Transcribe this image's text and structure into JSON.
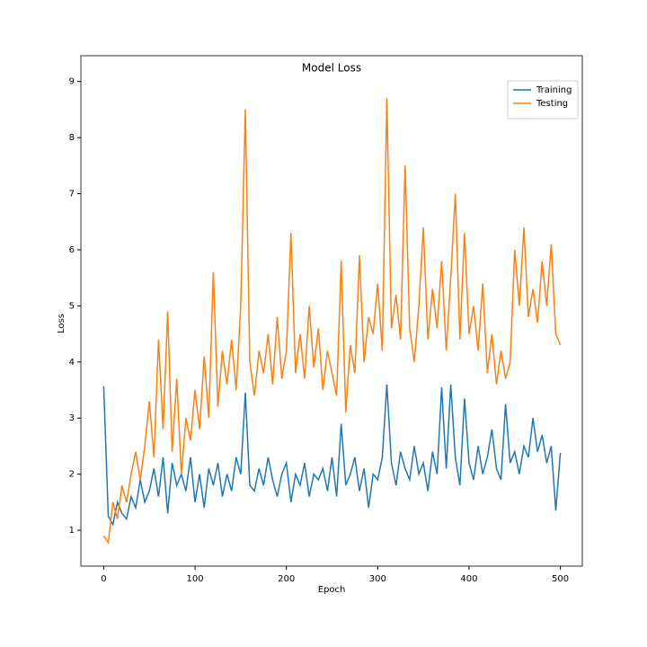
{
  "chart_data": {
    "type": "line",
    "title": "Model Loss",
    "x_label": "Epoch",
    "y_label": "Loss",
    "x": [
      0,
      5,
      10,
      15,
      20,
      25,
      30,
      35,
      40,
      45,
      50,
      55,
      60,
      65,
      70,
      75,
      80,
      85,
      90,
      95,
      100,
      105,
      110,
      115,
      120,
      125,
      130,
      135,
      140,
      145,
      150,
      155,
      160,
      165,
      170,
      175,
      180,
      185,
      190,
      195,
      200,
      205,
      210,
      215,
      220,
      225,
      230,
      235,
      240,
      245,
      250,
      255,
      260,
      265,
      270,
      275,
      280,
      285,
      290,
      295,
      300,
      305,
      310,
      315,
      320,
      325,
      330,
      335,
      340,
      345,
      350,
      355,
      360,
      365,
      370,
      375,
      380,
      385,
      390,
      395,
      400,
      405,
      410,
      415,
      420,
      425,
      430,
      435,
      440,
      445,
      450,
      455,
      460,
      465,
      470,
      475,
      480,
      485,
      490,
      495,
      500
    ],
    "series": [
      {
        "name": "Training",
        "color": "#1f77b4",
        "values": [
          3.57,
          1.25,
          1.1,
          1.5,
          1.3,
          1.2,
          1.6,
          1.4,
          1.9,
          1.5,
          1.7,
          2.1,
          1.6,
          2.3,
          1.3,
          2.2,
          1.8,
          2.0,
          1.7,
          2.3,
          1.5,
          2.0,
          1.4,
          2.1,
          1.8,
          2.2,
          1.6,
          2.0,
          1.7,
          2.3,
          2.0,
          3.45,
          1.8,
          1.7,
          2.1,
          1.8,
          2.3,
          1.9,
          1.6,
          2.0,
          2.2,
          1.5,
          2.0,
          1.8,
          2.2,
          1.6,
          2.0,
          1.9,
          2.1,
          1.7,
          2.3,
          1.6,
          2.9,
          1.8,
          2.0,
          2.3,
          1.7,
          2.1,
          1.4,
          2.0,
          1.9,
          2.3,
          3.6,
          2.2,
          1.8,
          2.4,
          2.1,
          1.9,
          2.5,
          2.0,
          2.2,
          1.7,
          2.4,
          2.0,
          3.55,
          2.1,
          3.6,
          2.3,
          1.8,
          3.35,
          2.2,
          1.9,
          2.5,
          2.0,
          2.3,
          2.8,
          2.1,
          1.9,
          3.25,
          2.2,
          2.4,
          2.0,
          2.5,
          2.3,
          3.0,
          2.4,
          2.7,
          2.2,
          2.5,
          1.35,
          2.38
        ]
      },
      {
        "name": "Testing",
        "color": "#ff7f0e",
        "values": [
          0.9,
          0.78,
          1.5,
          1.2,
          1.8,
          1.5,
          2.0,
          2.4,
          1.9,
          2.5,
          3.3,
          2.3,
          4.4,
          2.8,
          4.9,
          2.4,
          3.7,
          2.0,
          3.0,
          2.6,
          3.5,
          2.8,
          4.1,
          3.0,
          5.6,
          3.2,
          4.2,
          3.6,
          4.4,
          3.5,
          5.0,
          8.5,
          4.0,
          3.4,
          4.2,
          3.8,
          4.5,
          3.6,
          4.8,
          3.7,
          4.2,
          6.3,
          3.8,
          4.5,
          3.7,
          5.0,
          3.9,
          4.6,
          3.5,
          4.2,
          3.8,
          3.4,
          5.8,
          3.1,
          4.3,
          3.8,
          5.9,
          4.0,
          4.8,
          4.5,
          5.4,
          4.2,
          8.7,
          4.6,
          5.2,
          4.4,
          7.5,
          4.6,
          4.0,
          5.0,
          6.4,
          4.4,
          5.3,
          4.6,
          5.8,
          4.2,
          5.5,
          7.0,
          4.4,
          6.3,
          4.5,
          5.0,
          4.2,
          5.4,
          3.8,
          4.5,
          3.6,
          4.2,
          3.7,
          4.0,
          6.0,
          5.0,
          6.4,
          4.8,
          5.3,
          4.7,
          5.8,
          5.0,
          6.1,
          4.5,
          4.3
        ]
      }
    ],
    "xlim": [
      -25,
      524
    ],
    "ylim": [
      0.36,
      9.46
    ],
    "xticks": [
      0,
      100,
      200,
      300,
      400,
      500
    ],
    "yticks": [
      1,
      2,
      3,
      4,
      5,
      6,
      7,
      8,
      9
    ],
    "legend": "upper right"
  }
}
